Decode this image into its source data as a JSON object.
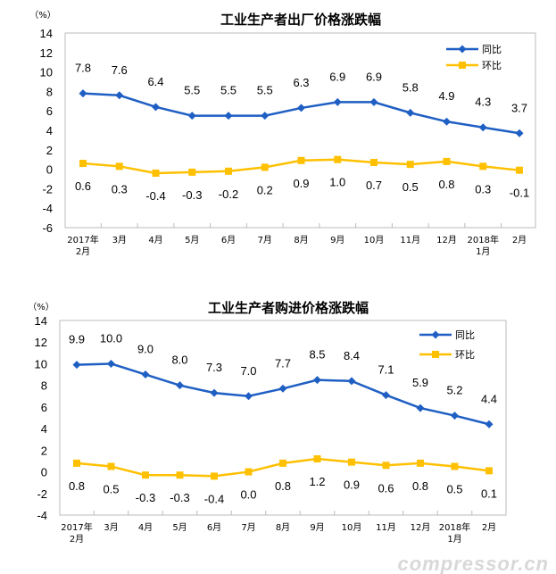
{
  "chart_data": [
    {
      "type": "line",
      "title": "工业生产者出厂价格涨跌幅",
      "ylabel": "（%）",
      "ylim": [
        -6,
        14
      ],
      "ystep": 2,
      "categories": [
        [
          "2017年",
          "2月"
        ],
        [
          "3月"
        ],
        [
          "4月"
        ],
        [
          "5月"
        ],
        [
          "6月"
        ],
        [
          "7月"
        ],
        [
          "8月"
        ],
        [
          "9月"
        ],
        [
          "10月"
        ],
        [
          "11月"
        ],
        [
          "12月"
        ],
        [
          "2018年",
          "1月"
        ],
        [
          "2月"
        ]
      ],
      "legend_position": "top-right",
      "series": [
        {
          "name": "同比",
          "color": "#1F5FC4",
          "marker": "diamond",
          "values": [
            7.8,
            7.6,
            6.4,
            5.5,
            5.5,
            5.5,
            6.3,
            6.9,
            6.9,
            5.8,
            4.9,
            4.3,
            3.7
          ]
        },
        {
          "name": "环比",
          "color": "#FFC000",
          "marker": "square",
          "values": [
            0.6,
            0.3,
            -0.4,
            -0.3,
            -0.2,
            0.2,
            0.9,
            1.0,
            0.7,
            0.5,
            0.8,
            0.3,
            -0.1
          ]
        }
      ]
    },
    {
      "type": "line",
      "title": "工业生产者购进价格涨跌幅",
      "ylabel": "（%）",
      "ylim": [
        -4,
        14
      ],
      "ystep": 2,
      "categories": [
        [
          "2017年",
          "2月"
        ],
        [
          "3月"
        ],
        [
          "4月"
        ],
        [
          "5月"
        ],
        [
          "6月"
        ],
        [
          "7月"
        ],
        [
          "8月"
        ],
        [
          "9月"
        ],
        [
          "10月"
        ],
        [
          "11月"
        ],
        [
          "12月"
        ],
        [
          "2018年",
          "1月"
        ],
        [
          "2月"
        ]
      ],
      "legend_position": "top-right",
      "series": [
        {
          "name": "同比",
          "color": "#1F5FC4",
          "marker": "diamond",
          "values": [
            9.9,
            10.0,
            9.0,
            8.0,
            7.3,
            7.0,
            7.7,
            8.5,
            8.4,
            7.1,
            5.9,
            5.2,
            4.4
          ]
        },
        {
          "name": "环比",
          "color": "#FFC000",
          "marker": "square",
          "values": [
            0.8,
            0.5,
            -0.3,
            -0.3,
            -0.4,
            0.0,
            0.8,
            1.2,
            0.9,
            0.6,
            0.8,
            0.5,
            0.1
          ]
        }
      ]
    }
  ],
  "watermark": "compressor.cn"
}
